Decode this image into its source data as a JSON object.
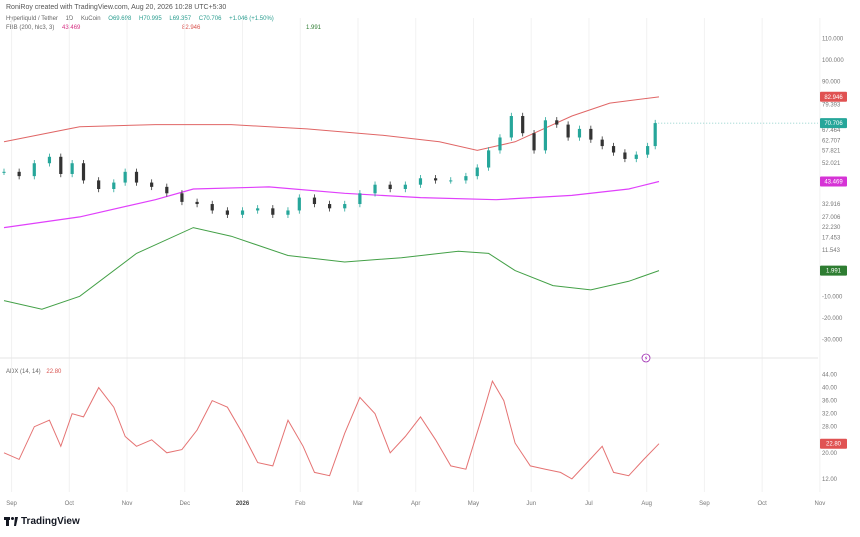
{
  "credit": "RoniRoy created with TradingView.com, Aug 20, 2026 10:28 UTC+5:30",
  "header": {
    "symbol": "HyperliquId / Tether",
    "interval": "1D",
    "exchange": "KuCoin",
    "open": "O69.698",
    "high": "H70.995",
    "low": "L69.357",
    "close": "C70.706",
    "change": "+1.046 (+1.50%)"
  },
  "fbb_legend": {
    "label": "FBB (200, hlc3, 3)",
    "value1": "43.469",
    "value2": "82.946",
    "value3": "1.991"
  },
  "adx_legend": {
    "label": "ADX (14, 14)",
    "value": "22.80"
  },
  "price_axis": {
    "ticks": [
      {
        "label": "110.000",
        "value": 110
      },
      {
        "label": "100.000",
        "value": 100
      },
      {
        "label": "90.000",
        "value": 90
      },
      {
        "label": "79.393",
        "value": 79.393
      },
      {
        "label": "67.464",
        "value": 67.464
      },
      {
        "label": "62.707",
        "value": 62.707
      },
      {
        "label": "57.821",
        "value": 57.821
      },
      {
        "label": "52.021",
        "value": 52.021
      },
      {
        "label": "32.916",
        "value": 32.916
      },
      {
        "label": "27.006",
        "value": 27.006
      },
      {
        "label": "22.230",
        "value": 22.23
      },
      {
        "label": "17.453",
        "value": 17.453
      },
      {
        "label": "11.543",
        "value": 11.543
      },
      {
        "label": "-10.000",
        "value": -10
      },
      {
        "label": "-20.000",
        "value": -20
      },
      {
        "label": "-30.000",
        "value": -30
      }
    ],
    "tags": [
      {
        "text": "82.946",
        "value": 82.946,
        "color": "#e05252"
      },
      {
        "text": "70.706",
        "value": 70.706,
        "color": "#26a69a"
      },
      {
        "text": "43.469",
        "value": 43.469,
        "color": "#d633d6"
      },
      {
        "text": "1.991",
        "value": 1.991,
        "color": "#2e7d32"
      }
    ]
  },
  "adx_axis": {
    "ticks": [
      {
        "label": "44.00",
        "value": 44
      },
      {
        "label": "40.00",
        "value": 40
      },
      {
        "label": "36.00",
        "value": 36
      },
      {
        "label": "32.00",
        "value": 32
      },
      {
        "label": "28.00",
        "value": 28
      },
      {
        "label": "20.00",
        "value": 20
      },
      {
        "label": "12.00",
        "value": 12
      }
    ],
    "tag": {
      "text": "22.80",
      "value": 22.8,
      "color": "#e05252"
    }
  },
  "time_axis": [
    "Sep",
    "Oct",
    "Nov",
    "Dec",
    "2026",
    "Feb",
    "Mar",
    "Apr",
    "May",
    "Jun",
    "Jul",
    "Aug",
    "Sep",
    "Oct",
    "Nov"
  ],
  "footer": {
    "brand": "TradingView"
  },
  "chart_data": {
    "type": "line",
    "price_range": [
      -35,
      115
    ],
    "adx_range": [
      8,
      46
    ],
    "x_domain_days": [
      0,
      430
    ],
    "price_series": [
      {
        "day": 0,
        "value": 48
      },
      {
        "day": 8,
        "value": 46
      },
      {
        "day": 16,
        "value": 52
      },
      {
        "day": 24,
        "value": 55
      },
      {
        "day": 30,
        "value": 47
      },
      {
        "day": 36,
        "value": 52
      },
      {
        "day": 42,
        "value": 44
      },
      {
        "day": 50,
        "value": 40
      },
      {
        "day": 58,
        "value": 43
      },
      {
        "day": 64,
        "value": 48
      },
      {
        "day": 70,
        "value": 43
      },
      {
        "day": 78,
        "value": 41
      },
      {
        "day": 86,
        "value": 38
      },
      {
        "day": 94,
        "value": 34
      },
      {
        "day": 102,
        "value": 33
      },
      {
        "day": 110,
        "value": 30
      },
      {
        "day": 118,
        "value": 28
      },
      {
        "day": 126,
        "value": 30
      },
      {
        "day": 134,
        "value": 31
      },
      {
        "day": 142,
        "value": 28
      },
      {
        "day": 150,
        "value": 30
      },
      {
        "day": 156,
        "value": 36
      },
      {
        "day": 164,
        "value": 33
      },
      {
        "day": 172,
        "value": 31
      },
      {
        "day": 180,
        "value": 33
      },
      {
        "day": 188,
        "value": 38
      },
      {
        "day": 196,
        "value": 42
      },
      {
        "day": 204,
        "value": 40
      },
      {
        "day": 212,
        "value": 42
      },
      {
        "day": 220,
        "value": 45
      },
      {
        "day": 228,
        "value": 44
      },
      {
        "day": 236,
        "value": 44
      },
      {
        "day": 244,
        "value": 46
      },
      {
        "day": 250,
        "value": 50
      },
      {
        "day": 256,
        "value": 58
      },
      {
        "day": 262,
        "value": 64
      },
      {
        "day": 268,
        "value": 74
      },
      {
        "day": 274,
        "value": 66
      },
      {
        "day": 280,
        "value": 58
      },
      {
        "day": 286,
        "value": 72
      },
      {
        "day": 292,
        "value": 70
      },
      {
        "day": 298,
        "value": 64
      },
      {
        "day": 304,
        "value": 68
      },
      {
        "day": 310,
        "value": 63
      },
      {
        "day": 316,
        "value": 60
      },
      {
        "day": 322,
        "value": 57
      },
      {
        "day": 328,
        "value": 54
      },
      {
        "day": 334,
        "value": 56
      },
      {
        "day": 340,
        "value": 60
      },
      {
        "day": 344,
        "value": 70.7
      }
    ],
    "bb_upper": [
      {
        "day": 0,
        "value": 62
      },
      {
        "day": 40,
        "value": 69
      },
      {
        "day": 80,
        "value": 70
      },
      {
        "day": 120,
        "value": 70
      },
      {
        "day": 160,
        "value": 68
      },
      {
        "day": 200,
        "value": 65
      },
      {
        "day": 230,
        "value": 62
      },
      {
        "day": 250,
        "value": 58
      },
      {
        "day": 270,
        "value": 62
      },
      {
        "day": 300,
        "value": 74
      },
      {
        "day": 320,
        "value": 80
      },
      {
        "day": 346,
        "value": 82.9
      }
    ],
    "bb_middle": [
      {
        "day": 0,
        "value": 22
      },
      {
        "day": 40,
        "value": 27
      },
      {
        "day": 80,
        "value": 35
      },
      {
        "day": 100,
        "value": 40
      },
      {
        "day": 140,
        "value": 41
      },
      {
        "day": 180,
        "value": 38
      },
      {
        "day": 220,
        "value": 36
      },
      {
        "day": 260,
        "value": 35
      },
      {
        "day": 300,
        "value": 37
      },
      {
        "day": 330,
        "value": 40
      },
      {
        "day": 346,
        "value": 43.5
      }
    ],
    "bb_lower": [
      {
        "day": 0,
        "value": -12
      },
      {
        "day": 20,
        "value": -16
      },
      {
        "day": 40,
        "value": -10
      },
      {
        "day": 70,
        "value": 10
      },
      {
        "day": 100,
        "value": 22
      },
      {
        "day": 120,
        "value": 18
      },
      {
        "day": 150,
        "value": 9
      },
      {
        "day": 180,
        "value": 6
      },
      {
        "day": 210,
        "value": 8
      },
      {
        "day": 240,
        "value": 11
      },
      {
        "day": 256,
        "value": 10
      },
      {
        "day": 270,
        "value": 2
      },
      {
        "day": 290,
        "value": -5
      },
      {
        "day": 310,
        "value": -7
      },
      {
        "day": 330,
        "value": -3
      },
      {
        "day": 346,
        "value": 2
      }
    ],
    "adx_series": [
      {
        "day": 0,
        "value": 20
      },
      {
        "day": 8,
        "value": 18
      },
      {
        "day": 16,
        "value": 28
      },
      {
        "day": 24,
        "value": 30
      },
      {
        "day": 30,
        "value": 22
      },
      {
        "day": 36,
        "value": 32
      },
      {
        "day": 42,
        "value": 31
      },
      {
        "day": 50,
        "value": 40
      },
      {
        "day": 58,
        "value": 34
      },
      {
        "day": 64,
        "value": 25
      },
      {
        "day": 70,
        "value": 22
      },
      {
        "day": 78,
        "value": 24
      },
      {
        "day": 86,
        "value": 20
      },
      {
        "day": 94,
        "value": 21
      },
      {
        "day": 102,
        "value": 27
      },
      {
        "day": 110,
        "value": 36
      },
      {
        "day": 118,
        "value": 34
      },
      {
        "day": 126,
        "value": 26
      },
      {
        "day": 134,
        "value": 17
      },
      {
        "day": 142,
        "value": 16
      },
      {
        "day": 150,
        "value": 30
      },
      {
        "day": 158,
        "value": 22
      },
      {
        "day": 164,
        "value": 14
      },
      {
        "day": 172,
        "value": 13
      },
      {
        "day": 180,
        "value": 26
      },
      {
        "day": 188,
        "value": 37
      },
      {
        "day": 196,
        "value": 32
      },
      {
        "day": 204,
        "value": 20
      },
      {
        "day": 212,
        "value": 25
      },
      {
        "day": 220,
        "value": 31
      },
      {
        "day": 228,
        "value": 24
      },
      {
        "day": 236,
        "value": 16
      },
      {
        "day": 244,
        "value": 15
      },
      {
        "day": 252,
        "value": 30
      },
      {
        "day": 258,
        "value": 42
      },
      {
        "day": 264,
        "value": 36
      },
      {
        "day": 270,
        "value": 23
      },
      {
        "day": 278,
        "value": 16
      },
      {
        "day": 286,
        "value": 15
      },
      {
        "day": 294,
        "value": 14
      },
      {
        "day": 300,
        "value": 12
      },
      {
        "day": 308,
        "value": 17
      },
      {
        "day": 316,
        "value": 22
      },
      {
        "day": 322,
        "value": 14
      },
      {
        "day": 330,
        "value": 13
      },
      {
        "day": 338,
        "value": 18
      },
      {
        "day": 346,
        "value": 22.8
      }
    ]
  }
}
